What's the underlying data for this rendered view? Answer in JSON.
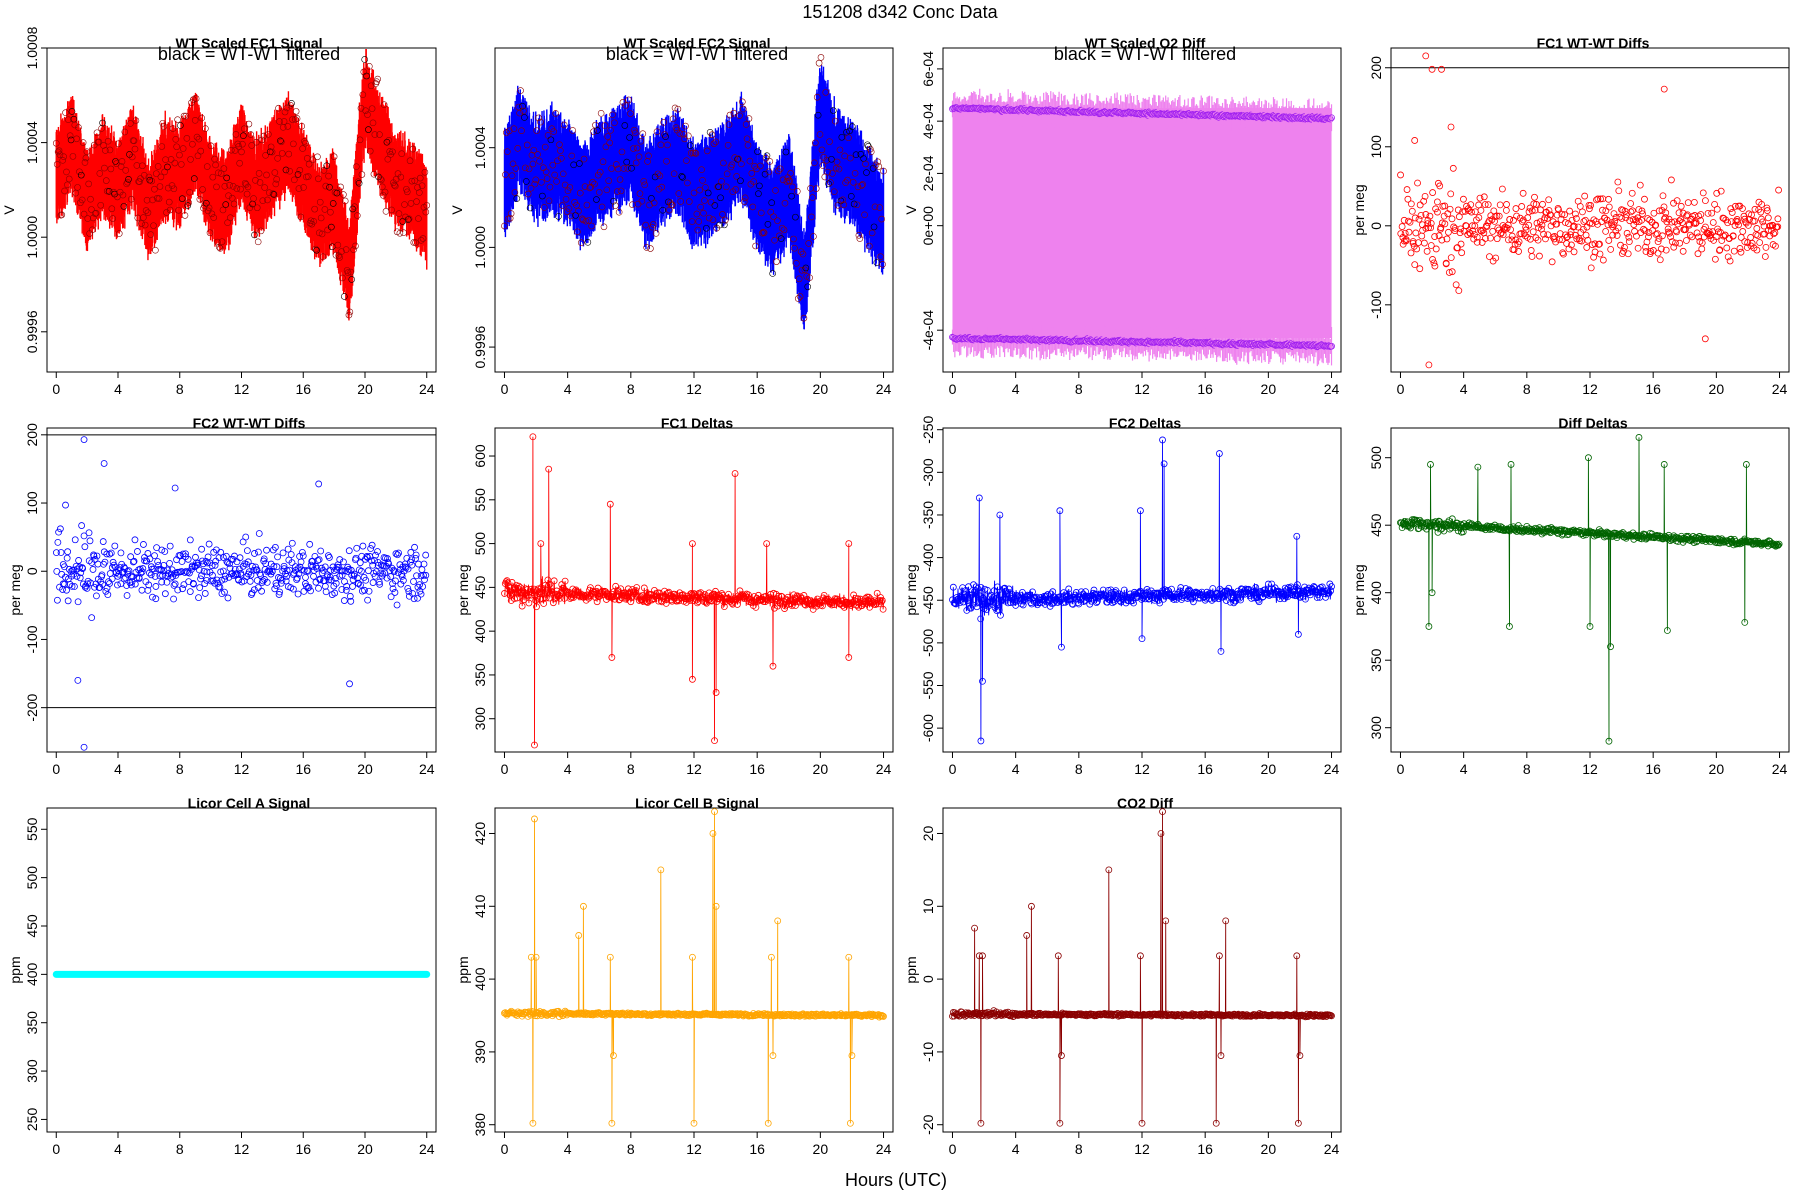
{
  "figure": {
    "title": "151208   d342   Conc Data",
    "xlabel": "Hours (UTC)"
  },
  "chart_data": [
    {
      "type": "line",
      "title": "WT Scaled FC1 Signal",
      "annotation": "black = WT-WT filtered",
      "ylabel": "V",
      "color": "#ff0000",
      "style": "band",
      "xlim": [
        -0.6,
        24.6
      ],
      "ylim": [
        0.99943,
        1.0008
      ],
      "xticks": [
        0,
        4,
        8,
        12,
        16,
        20,
        24
      ],
      "yticks": [
        0.9996,
        1.0,
        1.0004,
        1.0008
      ],
      "ytick_labels": [
        "0.9996",
        "1.0000",
        "1.0004",
        "1.0008"
      ],
      "series": [
        {
          "name": "signal",
          "x": [
            0,
            1,
            2,
            3,
            4,
            5,
            6,
            7,
            8,
            9,
            10,
            11,
            12,
            13,
            14,
            15,
            16,
            17,
            18,
            19,
            20,
            21,
            22,
            23,
            24
          ],
          "y": [
            1.00025,
            1.0004,
            1.00015,
            1.0003,
            1.0002,
            1.00035,
            1.0001,
            1.0003,
            1.00025,
            1.0004,
            1.0002,
            1.00015,
            1.00035,
            1.0002,
            1.0003,
            1.0004,
            1.00025,
            1.0001,
            1.00015,
            0.99985,
            1.0006,
            1.0004,
            1.00025,
            1.0002,
            1.0001
          ],
          "spread": 0.00018
        }
      ]
    },
    {
      "type": "line",
      "title": "WT Scaled FC2 Signal",
      "annotation": "black = WT-WT filtered",
      "ylabel": "V",
      "color": "#0000ff",
      "style": "band",
      "xlim": [
        -0.6,
        24.6
      ],
      "ylim": [
        0.9995,
        1.0008
      ],
      "xticks": [
        0,
        4,
        8,
        12,
        16,
        20,
        24
      ],
      "yticks": [
        0.9996,
        1.0,
        1.0004
      ],
      "ytick_labels": [
        "0.9996",
        "1.0000",
        "1.0004"
      ],
      "series": [
        {
          "name": "signal",
          "x": [
            0,
            1,
            2,
            3,
            4,
            5,
            6,
            7,
            8,
            9,
            10,
            11,
            12,
            13,
            14,
            15,
            16,
            17,
            18,
            19,
            20,
            21,
            22,
            23,
            24
          ],
          "y": [
            1.00025,
            1.00045,
            1.0003,
            1.00035,
            1.0003,
            1.0002,
            1.0003,
            1.00035,
            1.0004,
            1.0002,
            1.0003,
            1.00035,
            1.0002,
            1.00025,
            1.0003,
            1.0004,
            1.0002,
            1.0001,
            1.00025,
            0.99985,
            1.00055,
            1.00035,
            1.0003,
            1.0002,
            1.0001
          ],
          "spread": 0.00018
        }
      ]
    },
    {
      "type": "line",
      "title": "WT Scaled O2 Diff",
      "annotation": "black = WT-WT filtered",
      "ylabel": "V",
      "color": "#ee82ee",
      "style": "alternating",
      "xlim": [
        -0.6,
        24.6
      ],
      "ylim": [
        -0.00056,
        0.00068
      ],
      "xticks": [
        0,
        4,
        8,
        12,
        16,
        20,
        24
      ],
      "yticks": [
        -0.0004,
        0.0,
        0.0002,
        0.0004,
        0.0006
      ],
      "ytick_labels": [
        "-4e-04",
        "0e+00",
        "2e-04",
        "4e-04",
        "6e-04"
      ],
      "series": [
        {
          "name": "high",
          "x": [
            0,
            24
          ],
          "y": [
            0.00045,
            0.00041
          ]
        },
        {
          "name": "low",
          "x": [
            0,
            24
          ],
          "y": [
            -0.00043,
            -0.00046
          ]
        }
      ]
    },
    {
      "type": "scatter",
      "title": "FC1 WT-WT Diffs",
      "ylabel": "per meg",
      "color": "#ff0000",
      "xlim": [
        -0.6,
        24.6
      ],
      "ylim": [
        -185,
        225
      ],
      "xticks": [
        0,
        4,
        8,
        12,
        16,
        20,
        24
      ],
      "yticks": [
        -100,
        0,
        100,
        200
      ],
      "ytick_labels": [
        "-100",
        "0",
        "100",
        "200"
      ],
      "hlines": [
        200
      ],
      "series": [
        {
          "name": "diffs",
          "n": 560,
          "center": 0,
          "spread": 35,
          "outliers": [
            [
              1.6,
              215
            ],
            [
              2.0,
              198
            ],
            [
              2.6,
              198
            ],
            [
              1.8,
              -176
            ],
            [
              16.7,
              173
            ],
            [
              19.3,
              -143
            ],
            [
              0.9,
              108
            ],
            [
              3.2,
              125
            ]
          ]
        }
      ]
    },
    {
      "type": "scatter",
      "title": "FC2 WT-WT Diffs",
      "ylabel": "per meg",
      "color": "#0000ff",
      "xlim": [
        -0.6,
        24.6
      ],
      "ylim": [
        -265,
        210
      ],
      "xticks": [
        0,
        4,
        8,
        12,
        16,
        20,
        24
      ],
      "yticks": [
        -200,
        -100,
        0,
        100,
        200
      ],
      "ytick_labels": [
        "-200",
        "-100",
        "0",
        "100",
        "200"
      ],
      "hlines": [
        -200,
        200
      ],
      "series": [
        {
          "name": "diffs",
          "n": 560,
          "center": 0,
          "spread": 32,
          "outliers": [
            [
              1.8,
              193
            ],
            [
              3.1,
              158
            ],
            [
              1.8,
              -258
            ],
            [
              1.4,
              -160
            ],
            [
              19.0,
              -165
            ],
            [
              17.0,
              128
            ],
            [
              7.7,
              122
            ],
            [
              0.6,
              97
            ]
          ]
        }
      ]
    },
    {
      "type": "line",
      "title": "FC1 Deltas",
      "ylabel": "per meg",
      "color": "#ff0000",
      "style": "spiky",
      "xlim": [
        -0.6,
        24.6
      ],
      "ylim": [
        262,
        632
      ],
      "xticks": [
        0,
        4,
        8,
        12,
        16,
        20,
        24
      ],
      "yticks": [
        300,
        350,
        400,
        450,
        500,
        550,
        600
      ],
      "ytick_labels": [
        "300",
        "350",
        "400",
        "450",
        "500",
        "550",
        "600"
      ],
      "series": [
        {
          "name": "delta",
          "base_start": 445,
          "base_end": 432,
          "noise": 14,
          "spikes": [
            [
              1.8,
              622
            ],
            [
              1.9,
              270
            ],
            [
              2.3,
              500
            ],
            [
              2.8,
              585
            ],
            [
              6.7,
              545
            ],
            [
              6.8,
              370
            ],
            [
              11.9,
              500
            ],
            [
              11.9,
              345
            ],
            [
              13.3,
              275
            ],
            [
              13.4,
              330
            ],
            [
              14.6,
              580
            ],
            [
              16.6,
              500
            ],
            [
              17.0,
              360
            ],
            [
              21.8,
              500
            ],
            [
              21.8,
              370
            ]
          ]
        }
      ]
    },
    {
      "type": "line",
      "title": "FC2 Deltas",
      "ylabel": "per meg",
      "color": "#0000ff",
      "style": "spiky",
      "xlim": [
        -0.6,
        24.6
      ],
      "ylim": [
        -628,
        -248
      ],
      "xticks": [
        0,
        4,
        8,
        12,
        16,
        20,
        24
      ],
      "yticks": [
        -600,
        -550,
        -500,
        -450,
        -400,
        -350,
        -300,
        -250
      ],
      "ytick_labels": [
        "-600",
        "-550",
        "-500",
        "-450",
        "-400",
        "-350",
        "-300",
        "-250"
      ],
      "series": [
        {
          "name": "delta",
          "base_start": -450,
          "base_end": -440,
          "noise": 15,
          "spikes": [
            [
              1.7,
              -330
            ],
            [
              1.8,
              -615
            ],
            [
              1.9,
              -545
            ],
            [
              3.0,
              -350
            ],
            [
              6.8,
              -345
            ],
            [
              6.9,
              -505
            ],
            [
              11.9,
              -345
            ],
            [
              12.0,
              -495
            ],
            [
              13.3,
              -262
            ],
            [
              13.4,
              -290
            ],
            [
              16.9,
              -278
            ],
            [
              17.0,
              -510
            ],
            [
              21.8,
              -375
            ],
            [
              21.9,
              -490
            ]
          ]
        }
      ]
    },
    {
      "type": "line",
      "title": "Diff Deltas",
      "ylabel": "per meg",
      "color": "#006400",
      "style": "spiky",
      "xlim": [
        -0.6,
        24.6
      ],
      "ylim": [
        282,
        522
      ],
      "xticks": [
        0,
        4,
        8,
        12,
        16,
        20,
        24
      ],
      "yticks": [
        300,
        350,
        400,
        450,
        500
      ],
      "ytick_labels": [
        "300",
        "350",
        "400",
        "450",
        "500"
      ],
      "series": [
        {
          "name": "delta",
          "base_start": 452,
          "base_end": 436,
          "noise": 4,
          "spikes": [
            [
              1.8,
              375
            ],
            [
              1.9,
              495
            ],
            [
              2.0,
              400
            ],
            [
              4.9,
              493
            ],
            [
              6.9,
              375
            ],
            [
              7.0,
              495
            ],
            [
              11.9,
              500
            ],
            [
              12.0,
              375
            ],
            [
              13.2,
              290
            ],
            [
              13.3,
              360
            ],
            [
              15.1,
              515
            ],
            [
              16.7,
              495
            ],
            [
              16.9,
              372
            ],
            [
              21.8,
              378
            ],
            [
              21.9,
              495
            ]
          ]
        }
      ]
    },
    {
      "type": "line",
      "title": "Licor Cell A Signal",
      "ylabel": "ppm",
      "color": "#00ffff",
      "style": "flat",
      "xlim": [
        -0.6,
        24.6
      ],
      "ylim": [
        237,
        572
      ],
      "xticks": [
        0,
        4,
        8,
        12,
        16,
        20,
        24
      ],
      "yticks": [
        250,
        300,
        350,
        400,
        450,
        500,
        550
      ],
      "ytick_labels": [
        "250",
        "300",
        "350",
        "400",
        "450",
        "500",
        "550"
      ],
      "series": [
        {
          "name": "cellA",
          "x": [
            0,
            24
          ],
          "y": [
            400,
            400
          ]
        }
      ]
    },
    {
      "type": "line",
      "title": "Licor Cell B Signal",
      "ylabel": "ppm",
      "color": "#ffa500",
      "style": "spiky",
      "xlim": [
        -0.6,
        24.6
      ],
      "ylim": [
        379,
        423.5
      ],
      "xticks": [
        0,
        4,
        8,
        12,
        16,
        20,
        24
      ],
      "yticks": [
        380,
        390,
        400,
        410,
        420
      ],
      "ytick_labels": [
        "380",
        "390",
        "400",
        "410",
        "420"
      ],
      "series": [
        {
          "name": "cellB",
          "base_start": 395.3,
          "base_end": 395.0,
          "noise": 0.3,
          "spikes": [
            [
              1.7,
              403
            ],
            [
              1.8,
              380.2
            ],
            [
              1.9,
              422
            ],
            [
              2.0,
              403
            ],
            [
              4.7,
              406
            ],
            [
              5.0,
              410
            ],
            [
              6.7,
              403
            ],
            [
              6.8,
              380.2
            ],
            [
              6.9,
              389.5
            ],
            [
              9.9,
              415
            ],
            [
              11.9,
              403
            ],
            [
              12.0,
              380.2
            ],
            [
              13.2,
              420
            ],
            [
              13.3,
              423
            ],
            [
              13.4,
              410
            ],
            [
              16.7,
              380.2
            ],
            [
              16.9,
              403
            ],
            [
              17.0,
              389.5
            ],
            [
              17.3,
              408
            ],
            [
              21.8,
              403
            ],
            [
              21.9,
              380.2
            ],
            [
              22.0,
              389.5
            ]
          ]
        }
      ]
    },
    {
      "type": "line",
      "title": "CO2 Diff",
      "ylabel": "ppm",
      "color": "#8b0000",
      "style": "spiky",
      "xlim": [
        -0.6,
        24.6
      ],
      "ylim": [
        -21,
        23.5
      ],
      "xticks": [
        0,
        4,
        8,
        12,
        16,
        20,
        24
      ],
      "yticks": [
        -20,
        -10,
        0,
        10,
        20
      ],
      "ytick_labels": [
        "-20",
        "-10",
        "0",
        "10",
        "20"
      ],
      "series": [
        {
          "name": "co2diff",
          "base_start": -4.8,
          "base_end": -5.0,
          "noise": 0.3,
          "spikes": [
            [
              1.4,
              7
            ],
            [
              1.7,
              3.2
            ],
            [
              1.8,
              -19.8
            ],
            [
              1.9,
              3.2
            ],
            [
              4.7,
              6
            ],
            [
              5.0,
              10
            ],
            [
              6.7,
              3.2
            ],
            [
              6.8,
              -19.8
            ],
            [
              6.9,
              -10.5
            ],
            [
              9.9,
              15
            ],
            [
              11.9,
              3.2
            ],
            [
              12.0,
              -19.8
            ],
            [
              13.2,
              20
            ],
            [
              13.3,
              23
            ],
            [
              13.5,
              8
            ],
            [
              16.7,
              -19.8
            ],
            [
              16.9,
              3.2
            ],
            [
              17.0,
              -10.5
            ],
            [
              17.3,
              8
            ],
            [
              21.8,
              3.2
            ],
            [
              21.9,
              -19.8
            ],
            [
              22.0,
              -10.5
            ]
          ]
        }
      ]
    }
  ]
}
